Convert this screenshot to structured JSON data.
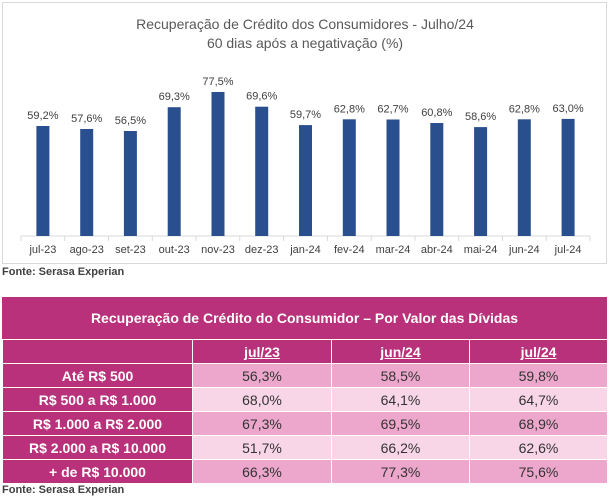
{
  "chart_data": {
    "type": "bar",
    "title": "Recuperação de Crédito dos Consumidores - Julho/24",
    "subtitle": "60 dias após a negativação (%)",
    "categories": [
      "jul-23",
      "ago-23",
      "set-23",
      "out-23",
      "nov-23",
      "dez-23",
      "jan-24",
      "fev-24",
      "mar-24",
      "abr-24",
      "mai-24",
      "jun-24",
      "jul-24"
    ],
    "values": [
      59.2,
      57.6,
      56.5,
      69.3,
      77.5,
      69.6,
      59.7,
      62.8,
      62.7,
      60.8,
      58.6,
      62.8,
      63.0
    ],
    "value_labels": [
      "59,2%",
      "57,6%",
      "56,5%",
      "69,3%",
      "77,5%",
      "69,6%",
      "59,7%",
      "62,8%",
      "62,7%",
      "60,8%",
      "58,6%",
      "62,8%",
      "63,0%"
    ],
    "bar_color": "#2a4f8f",
    "grid": false
  },
  "source_top": "Fonte: Serasa Experian",
  "table": {
    "title": "Recuperação de Crédito do Consumidor – Por Valor das Dívidas",
    "headers": [
      "",
      "jul/23",
      "jun/24",
      "jul/24"
    ],
    "rows": [
      {
        "label": "Até R$ 500",
        "values": [
          "56,3%",
          "58,5%",
          "59,8%"
        ]
      },
      {
        "label": "R$ 500 a R$ 1.000",
        "values": [
          "68,0%",
          "64,1%",
          "64,7%"
        ]
      },
      {
        "label": "R$ 1.000 a R$ 2.000",
        "values": [
          "67,3%",
          "69,5%",
          "68,9%"
        ]
      },
      {
        "label": "R$ 2.000 a R$ 10.000",
        "values": [
          "51,7%",
          "66,2%",
          "62,6%"
        ]
      },
      {
        "label": "+ de R$ 10.000",
        "values": [
          "66,3%",
          "77,3%",
          "75,6%"
        ]
      }
    ],
    "header_color": "#b8317a"
  },
  "source_bottom": "Fonte: Serasa Experian"
}
